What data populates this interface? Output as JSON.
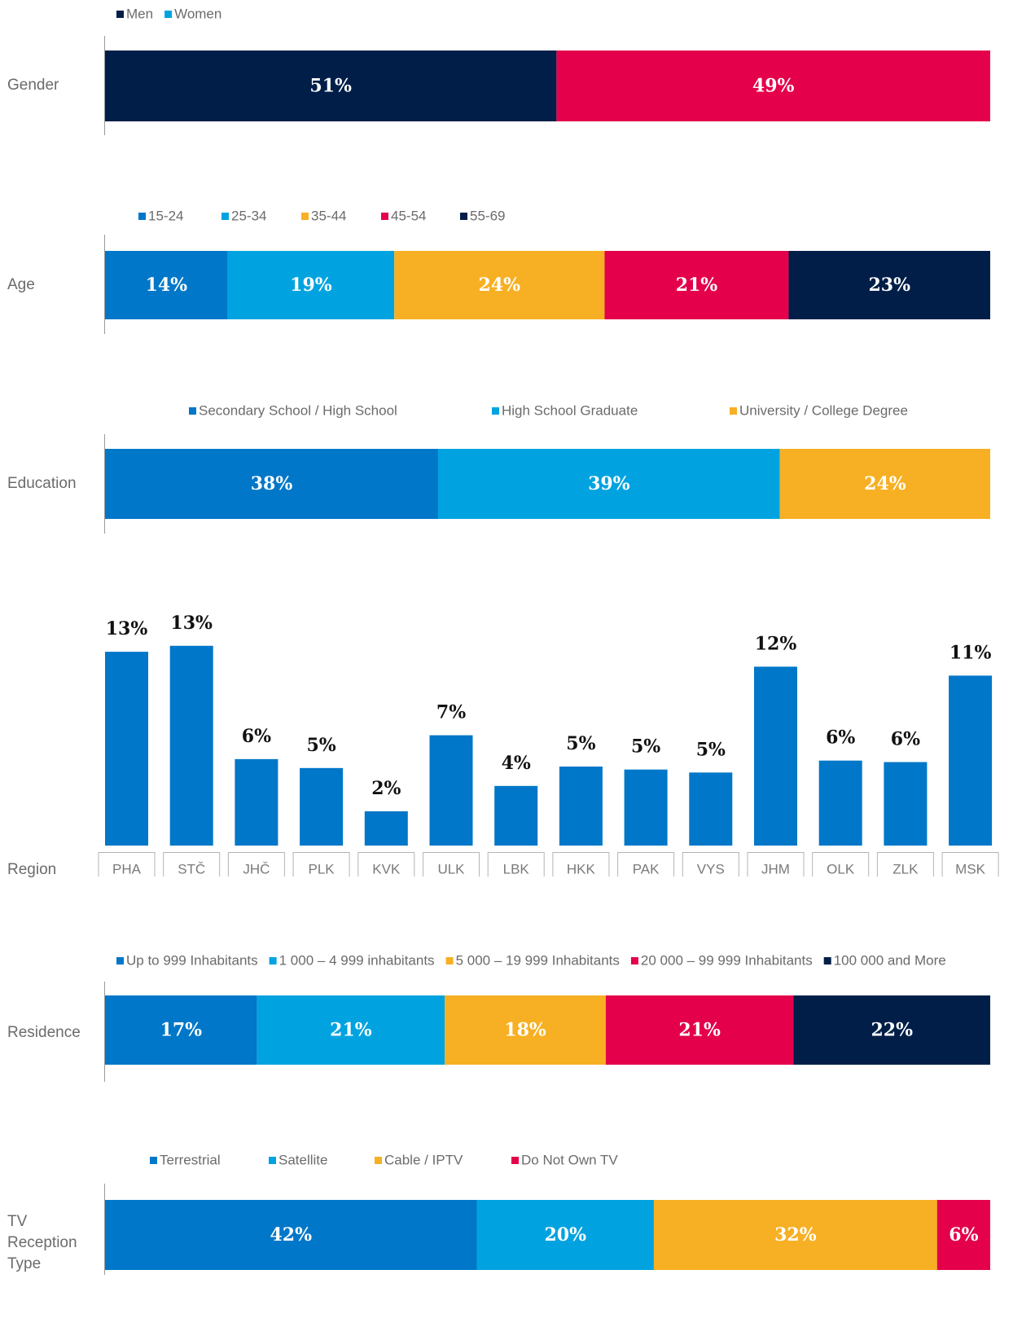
{
  "chart_data": [
    {
      "type": "stacked_bar",
      "label": "Gender",
      "series": [
        {
          "name": "Men",
          "color": "#001e48",
          "values": [
            51
          ],
          "value_labels": [
            "51%"
          ]
        },
        {
          "name": "Women",
          "color": "#e4004b",
          "legend_color": "#00a3e0",
          "values": [
            49
          ],
          "value_labels": [
            "49%"
          ]
        }
      ]
    },
    {
      "type": "stacked_bar",
      "label": "Age",
      "series": [
        {
          "name": "15-24",
          "color": "#0077c8",
          "values": [
            14
          ],
          "value_labels": [
            "14%"
          ]
        },
        {
          "name": "25-34",
          "color": "#00a3e0",
          "values": [
            19
          ],
          "value_labels": [
            "19%"
          ]
        },
        {
          "name": "35-44",
          "color": "#f7b023",
          "values": [
            24
          ],
          "value_labels": [
            "24%"
          ]
        },
        {
          "name": "45-54",
          "color": "#e4004b",
          "values": [
            21
          ],
          "value_labels": [
            "21%"
          ]
        },
        {
          "name": "55-69",
          "color": "#001e48",
          "values": [
            23
          ],
          "value_labels": [
            "23%"
          ]
        }
      ]
    },
    {
      "type": "stacked_bar",
      "label": "Education",
      "series": [
        {
          "name": "Secondary School / High School",
          "color": "#0077c8",
          "values": [
            38
          ],
          "value_labels": [
            "38%"
          ]
        },
        {
          "name": "High School Graduate",
          "color": "#00a3e0",
          "values": [
            39
          ],
          "value_labels": [
            "39%"
          ]
        },
        {
          "name": "University / College Degree",
          "color": "#f7b023",
          "values": [
            24
          ],
          "value_labels": [
            "24%"
          ]
        }
      ]
    },
    {
      "type": "bar",
      "label": "Region",
      "color": "#0077c8",
      "categories": [
        "PHA",
        "STČ",
        "JHČ",
        "PLK",
        "KVK",
        "ULK",
        "LBK",
        "HKK",
        "PAK",
        "VYS",
        "JHM",
        "OLK",
        "ZLK",
        "MSK"
      ],
      "values": [
        13.0,
        13.4,
        5.8,
        5.2,
        2.3,
        7.4,
        4.0,
        5.3,
        5.1,
        4.9,
        12.0,
        5.7,
        5.6,
        11.4
      ],
      "value_labels": [
        "13%",
        "13%",
        "6%",
        "5%",
        "2%",
        "7%",
        "4%",
        "5%",
        "5%",
        "5%",
        "12%",
        "6%",
        "6%",
        "11%"
      ]
    },
    {
      "type": "stacked_bar",
      "label": "Residence",
      "series": [
        {
          "name": "Up to 999 Inhabitants",
          "color": "#0077c8",
          "values": [
            17
          ],
          "value_labels": [
            "17%"
          ]
        },
        {
          "name": "1 000 – 4 999 inhabitants",
          "color": "#00a3e0",
          "values": [
            21
          ],
          "value_labels": [
            "21%"
          ]
        },
        {
          "name": "5 000 – 19 999 Inhabitants",
          "color": "#f7b023",
          "values": [
            18
          ],
          "value_labels": [
            "18%"
          ]
        },
        {
          "name": "20 000 – 99 999 Inhabitants",
          "color": "#e4004b",
          "values": [
            21
          ],
          "value_labels": [
            "21%"
          ]
        },
        {
          "name": "100 000 and More",
          "color": "#001e48",
          "values": [
            22
          ],
          "value_labels": [
            "22%"
          ]
        }
      ]
    },
    {
      "type": "stacked_bar",
      "label": "TV Reception Type",
      "series": [
        {
          "name": "Terrestrial",
          "color": "#0077c8",
          "values": [
            42
          ],
          "value_labels": [
            "42%"
          ]
        },
        {
          "name": "Satellite",
          "color": "#00a3e0",
          "values": [
            20
          ],
          "value_labels": [
            "20%"
          ]
        },
        {
          "name": "Cable / IPTV",
          "color": "#f7b023",
          "values": [
            32
          ],
          "value_labels": [
            "32%"
          ]
        },
        {
          "name": "Do Not Own TV",
          "color": "#e4004b",
          "values": [
            6
          ],
          "value_labels": [
            "6%"
          ]
        }
      ]
    }
  ]
}
